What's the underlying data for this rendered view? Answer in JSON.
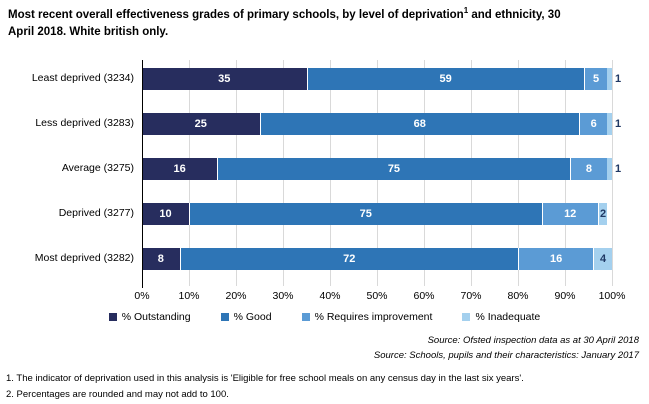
{
  "title": {
    "pre": "Most recent overall effectiveness grades of primary schools, by level of deprivation",
    "sup": "1",
    "post": " and ethnicity, 30 April 2018. White british only."
  },
  "chart_data": {
    "type": "bar",
    "orientation": "horizontal",
    "stacked": true,
    "categories": [
      "Least deprived (3234)",
      "Less deprived (3283)",
      "Average (3275)",
      "Deprived (3277)",
      "Most deprived (3282)"
    ],
    "series": [
      {
        "name": "% Outstanding",
        "color": "#272d5e",
        "values": [
          35,
          25,
          16,
          10,
          8
        ]
      },
      {
        "name": "% Good",
        "color": "#2e75b6",
        "values": [
          59,
          68,
          75,
          75,
          72
        ]
      },
      {
        "name": "% Requires improvement",
        "color": "#5b9bd5",
        "values": [
          5,
          6,
          8,
          12,
          16
        ]
      },
      {
        "name": "% Inadequate",
        "color": "#a4d0ee",
        "values": [
          1,
          1,
          1,
          2,
          4
        ]
      }
    ],
    "x_ticks": [
      "0%",
      "10%",
      "20%",
      "30%",
      "40%",
      "50%",
      "60%",
      "70%",
      "80%",
      "90%",
      "100%"
    ],
    "xlim": [
      0,
      100
    ],
    "grid": "vertical",
    "legend_position": "bottom",
    "value_labels": "inside segments; 1% segments labelled outside bar end"
  },
  "sources": [
    "Source: Ofsted inspection data as at 30 April 2018",
    "Source: Schools, pupils and their characteristics: January 2017"
  ],
  "footnotes": [
    "1. The indicator of deprivation used in this analysis is 'Eligible for free school meals on any census day in the last six years'.",
    "2. Percentages are rounded and may not add to 100."
  ],
  "colors": {
    "gridline": "#d9d9d9",
    "axis": "#000000",
    "label_light": "#ffffff",
    "label_dark": "#1f3864"
  }
}
